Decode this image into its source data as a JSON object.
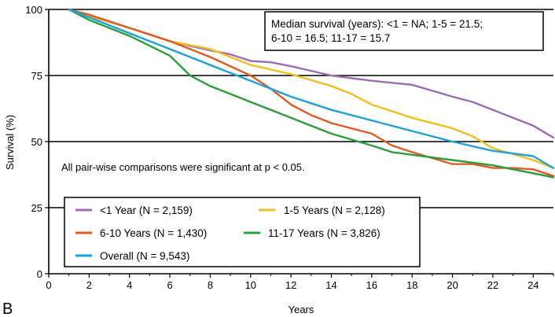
{
  "panel_label": "B",
  "colors": {
    "lt1": "#9b6bb5",
    "y1_5": "#f2bd1d",
    "y6_10": "#e15a23",
    "y11_17": "#2d9c3c",
    "overall": "#1ea0d8"
  },
  "chart_data": {
    "type": "line",
    "xlabel": "Years",
    "ylabel": "Survival (%)",
    "xlim": [
      0,
      25
    ],
    "ylim": [
      0,
      100
    ],
    "xticks": [
      0,
      2,
      4,
      6,
      8,
      10,
      12,
      14,
      16,
      18,
      20,
      22,
      24
    ],
    "yticks": [
      0,
      25,
      50,
      75,
      100
    ],
    "gridlines_y": [
      25,
      50,
      75,
      100
    ],
    "legend_placement": "bottom-left",
    "annotations": {
      "median_line1": "Median survival (years): <1 = NA; 1-5 = 21.5;",
      "median_line2": "6-10 = 16.5; 11-17 = 15.7",
      "significance": "All pair-wise comparisons were significant at p < 0.05."
    },
    "series": [
      {
        "key": "lt1",
        "name": "<1 Year (N = 2,159)",
        "x": [
          1,
          2,
          4,
          6,
          8,
          9,
          10,
          11,
          12,
          14,
          16,
          18,
          20,
          21,
          22,
          23,
          24,
          25
        ],
        "y": [
          100,
          97.5,
          93,
          88,
          84.5,
          83,
          80.5,
          80,
          78.5,
          75,
          73,
          71.5,
          67,
          65,
          62,
          59,
          56,
          51.5
        ]
      },
      {
        "key": "y1_5",
        "name": "1-5 Years (N = 2,128)",
        "x": [
          1,
          2,
          4,
          6,
          8,
          10,
          12,
          14,
          15,
          16,
          18,
          20,
          21,
          22,
          24,
          25
        ],
        "y": [
          100,
          97.5,
          93,
          88,
          85,
          79,
          75.5,
          71,
          68,
          64,
          59,
          55,
          52,
          47.5,
          43,
          40
        ]
      },
      {
        "key": "y6_10",
        "name": "6-10 Years (N = 1,430)",
        "x": [
          1,
          2,
          4,
          6,
          8,
          10,
          11,
          12,
          13,
          14,
          16,
          17,
          18,
          20,
          21,
          22,
          23,
          24,
          25
        ],
        "y": [
          100,
          98,
          93,
          88,
          82,
          75,
          70,
          64,
          60,
          57,
          53,
          48.5,
          46,
          41.5,
          41.5,
          40,
          40,
          39.5,
          37
        ]
      },
      {
        "key": "y11_17",
        "name": "11-17 Years (N = 3,826)",
        "x": [
          1,
          2,
          4,
          6,
          7,
          8,
          10,
          12,
          14,
          16,
          17,
          18,
          20,
          22,
          24,
          25
        ],
        "y": [
          100,
          96,
          90,
          82.5,
          75,
          71,
          65,
          59,
          53,
          48.5,
          46,
          45,
          43,
          41,
          38,
          36.5
        ]
      },
      {
        "key": "overall",
        "name": "Overall (N = 9,543)",
        "x": [
          1,
          2,
          4,
          6,
          8,
          10,
          12,
          14,
          16,
          18,
          20,
          22,
          24,
          25
        ],
        "y": [
          100,
          97,
          91,
          85,
          79,
          73,
          67,
          62,
          58,
          54,
          50,
          46.5,
          44.5,
          40
        ]
      }
    ]
  }
}
